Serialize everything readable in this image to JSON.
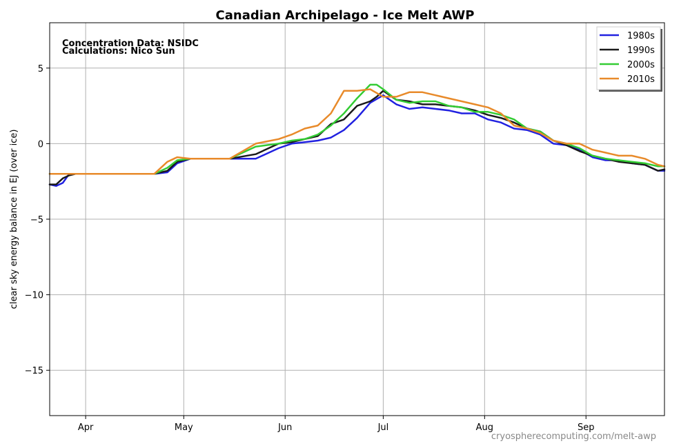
{
  "chart_data": {
    "type": "line",
    "title": "Canadian Archipelago - Ice Melt AWP",
    "xlabel": "",
    "ylabel": "clear sky energy balance in EJ (over ice)",
    "ylim": [
      -18,
      8
    ],
    "xlim": [
      80,
      268
    ],
    "grid": true,
    "legend_position": "top-right",
    "annotations": [
      "Concentration Data: NSIDC",
      "Calculations: Nico Sun"
    ],
    "watermark": "cryospherecomputing.com/melt-awp",
    "xtick_values": [
      91,
      121,
      152,
      182,
      213,
      244
    ],
    "xtick_labels": [
      "Apr",
      "May",
      "Jun",
      "Jul",
      "Aug",
      "Sep"
    ],
    "ytick_values": [
      5,
      0,
      -5,
      -10,
      -15
    ],
    "ytick_labels": [
      "5",
      "0",
      "−5",
      "−10",
      "−15"
    ],
    "series": [
      {
        "name": "1980s",
        "color": "#2020e0",
        "x": [
          80,
          82,
          84,
          86,
          88,
          95,
          105,
          112,
          116,
          119,
          123,
          127,
          135,
          143,
          150,
          154,
          158,
          162,
          166,
          170,
          174,
          178,
          182,
          186,
          190,
          194,
          198,
          202,
          206,
          210,
          214,
          218,
          222,
          226,
          230,
          234,
          238,
          242,
          246,
          250,
          254,
          258,
          262,
          266,
          268
        ],
        "y": [
          -2.7,
          -2.8,
          -2.6,
          -2.0,
          -2.0,
          -2.0,
          -2.0,
          -2.0,
          -1.9,
          -1.3,
          -1.0,
          -1.0,
          -1.0,
          -1.0,
          -0.3,
          0.0,
          0.1,
          0.2,
          0.4,
          0.9,
          1.7,
          2.7,
          3.2,
          2.6,
          2.3,
          2.4,
          2.3,
          2.2,
          2.0,
          2.0,
          1.6,
          1.4,
          1.0,
          0.9,
          0.6,
          0.0,
          -0.1,
          -0.4,
          -0.9,
          -1.1,
          -1.1,
          -1.3,
          -1.4,
          -1.8,
          -1.8
        ]
      },
      {
        "name": "1990s",
        "color": "#1a1a1a",
        "x": [
          80,
          82,
          84,
          86,
          88,
          95,
          105,
          112,
          116,
          119,
          123,
          127,
          135,
          143,
          150,
          154,
          158,
          162,
          166,
          170,
          174,
          178,
          180,
          182,
          186,
          190,
          194,
          198,
          202,
          206,
          210,
          214,
          218,
          222,
          226,
          230,
          234,
          238,
          242,
          246,
          250,
          254,
          258,
          262,
          266,
          268
        ],
        "y": [
          -2.7,
          -2.7,
          -2.3,
          -2.1,
          -2.0,
          -2.0,
          -2.0,
          -2.0,
          -1.8,
          -1.2,
          -1.0,
          -1.0,
          -1.0,
          -0.7,
          0.0,
          0.1,
          0.3,
          0.5,
          1.3,
          1.6,
          2.5,
          2.8,
          3.1,
          3.5,
          2.9,
          2.8,
          2.6,
          2.6,
          2.5,
          2.4,
          2.2,
          1.9,
          1.7,
          1.4,
          1.0,
          0.8,
          0.2,
          -0.1,
          -0.5,
          -0.8,
          -1.0,
          -1.2,
          -1.3,
          -1.4,
          -1.8,
          -1.7
        ]
      },
      {
        "name": "2000s",
        "color": "#33cc33",
        "x": [
          80,
          82,
          84,
          86,
          88,
          95,
          105,
          112,
          116,
          119,
          123,
          127,
          135,
          143,
          150,
          154,
          158,
          162,
          166,
          170,
          174,
          178,
          180,
          182,
          186,
          190,
          194,
          198,
          202,
          206,
          210,
          214,
          218,
          222,
          226,
          230,
          234,
          238,
          242,
          246,
          250,
          254,
          258,
          262,
          266,
          268
        ],
        "y": [
          -2.0,
          -2.0,
          -2.0,
          -2.0,
          -2.0,
          -2.0,
          -2.0,
          -2.0,
          -1.6,
          -1.1,
          -1.0,
          -1.0,
          -1.0,
          -0.2,
          0.0,
          0.2,
          0.3,
          0.6,
          1.2,
          2.0,
          3.0,
          3.9,
          3.9,
          3.6,
          2.9,
          2.7,
          2.8,
          2.8,
          2.5,
          2.4,
          2.1,
          2.1,
          1.9,
          1.6,
          1.0,
          0.8,
          0.2,
          0.0,
          -0.3,
          -0.8,
          -1.0,
          -1.1,
          -1.2,
          -1.3,
          -1.5,
          -1.5
        ]
      },
      {
        "name": "2010s",
        "color": "#e88a2a",
        "x": [
          80,
          82,
          84,
          86,
          88,
          95,
          105,
          112,
          116,
          119,
          123,
          127,
          135,
          143,
          150,
          154,
          158,
          162,
          166,
          170,
          174,
          178,
          182,
          186,
          190,
          194,
          198,
          202,
          206,
          210,
          214,
          218,
          222,
          226,
          230,
          234,
          238,
          242,
          246,
          250,
          254,
          258,
          262,
          266,
          268
        ],
        "y": [
          -2.0,
          -2.0,
          -2.0,
          -2.0,
          -2.0,
          -2.0,
          -2.0,
          -2.0,
          -1.2,
          -0.9,
          -1.0,
          -1.0,
          -1.0,
          0.0,
          0.3,
          0.6,
          1.0,
          1.2,
          2.0,
          3.5,
          3.5,
          3.6,
          3.1,
          3.1,
          3.4,
          3.4,
          3.2,
          3.0,
          2.8,
          2.6,
          2.4,
          2.0,
          1.2,
          1.0,
          0.7,
          0.2,
          0.0,
          0.0,
          -0.4,
          -0.6,
          -0.8,
          -0.8,
          -1.0,
          -1.4,
          -1.5
        ]
      }
    ]
  }
}
